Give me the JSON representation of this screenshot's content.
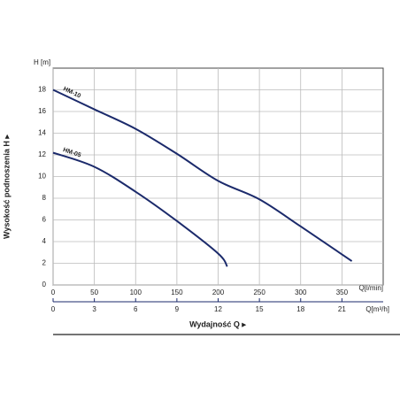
{
  "chart_data": {
    "type": "line",
    "y_label": "Wysokość podnoszenia H ▸",
    "y_unit": "H [m]",
    "x_unit": "Q[l/min]",
    "x2_unit": "Q[m³/h]",
    "x_label": "Wydajność Q ▸",
    "xlim": [
      0,
      400
    ],
    "xticks": [
      0,
      50,
      100,
      150,
      200,
      250,
      300,
      350
    ],
    "x2lim": [
      0,
      24
    ],
    "x2ticks": [
      0,
      3,
      6,
      9,
      12,
      15,
      18,
      21
    ],
    "ylim": [
      0,
      20
    ],
    "yticks": [
      0,
      2,
      4,
      6,
      8,
      10,
      12,
      14,
      16,
      18
    ],
    "grid": true,
    "series": [
      {
        "name": "HM-10",
        "color": "#1b2a6b",
        "x": [
          0,
          50,
          100,
          150,
          200,
          250,
          300,
          362
        ],
        "values": [
          18,
          16.2,
          14.4,
          12.1,
          9.6,
          7.9,
          5.4,
          2.2
        ]
      },
      {
        "name": "HM-05",
        "color": "#1b2a6b",
        "x": [
          0,
          50,
          100,
          150,
          200,
          211
        ],
        "values": [
          12.2,
          10.9,
          8.6,
          5.9,
          2.9,
          1.7
        ]
      }
    ]
  }
}
